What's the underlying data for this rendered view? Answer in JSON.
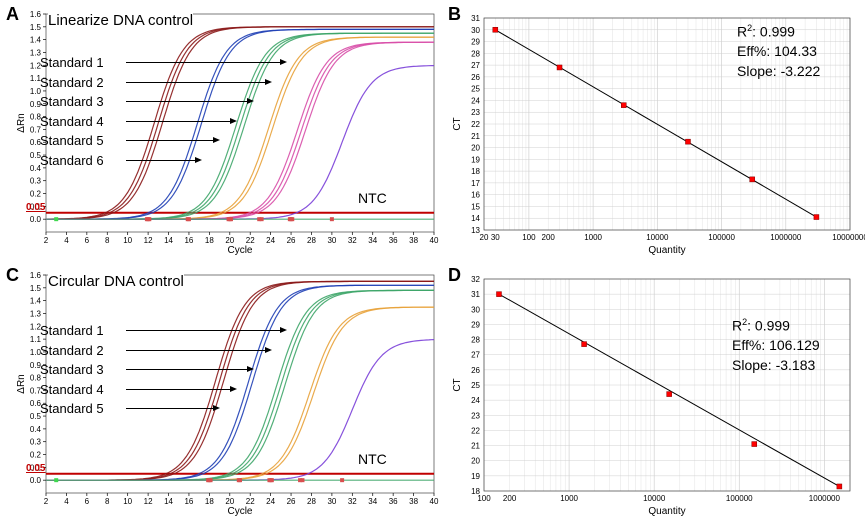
{
  "panels": {
    "A": {
      "letter": "A",
      "title": "Linearize DNA control",
      "type": "amplification",
      "legend": [
        "Standard 1",
        "Standard 2",
        "Standard 3",
        "Standard 4",
        "Standard 5",
        "Standard 6"
      ],
      "arrow_widths": [
        155,
        140,
        122,
        105,
        88,
        70
      ],
      "ntc": "NTC",
      "threshold_label": "0.05",
      "threshold": 0.05,
      "xlabel": "Cycle",
      "ylabel": "ΔRn",
      "xlim": [
        2,
        40
      ],
      "xtick_start": 2,
      "xtick_step": 2,
      "ylim": [
        -0.1,
        1.6
      ],
      "ytick_start": 0,
      "ytick_step": 0.1,
      "background_color": "#ffffff",
      "grid_color": "#d0d0d0",
      "line_width": 1.2,
      "curves": [
        {
          "name": "Standard 1",
          "color": "#8b1a1a",
          "reps": 3,
          "mid": 13,
          "plateau": 1.5
        },
        {
          "name": "Standard 2",
          "color": "#1f3fb5",
          "reps": 2,
          "mid": 17,
          "plateau": 1.48
        },
        {
          "name": "Standard 3",
          "color": "#3fa66a",
          "reps": 3,
          "mid": 21,
          "plateau": 1.45
        },
        {
          "name": "Standard 4",
          "color": "#e8a23a",
          "reps": 2,
          "mid": 24,
          "plateau": 1.42
        },
        {
          "name": "Standard 5",
          "color": "#d84fa8",
          "reps": 3,
          "mid": 27,
          "plateau": 1.38
        },
        {
          "name": "Standard 6",
          "color": "#7a3fd8",
          "reps": 1,
          "mid": 31,
          "plateau": 1.2
        },
        {
          "name": "NTC",
          "color": "#3fa66a",
          "reps": 1,
          "mid": 60,
          "plateau": 1.4
        }
      ],
      "baseline_markers": {
        "color_small": "#d84f4f",
        "color_ntc": "#3fd84f",
        "x_vals": [
          3,
          12,
          12,
          12,
          16,
          16,
          20,
          20,
          20,
          23,
          23,
          26,
          26,
          26,
          30
        ]
      }
    },
    "B": {
      "letter": "B",
      "type": "standard_curve",
      "xlabel": "Quantity",
      "ylabel": "CT",
      "xscale": "log",
      "xlim": [
        20,
        10000000
      ],
      "xticks": [
        20,
        30,
        100,
        200,
        1000,
        10000,
        100000,
        1000000,
        10000000
      ],
      "xtick_labels": [
        "20",
        "30",
        "100",
        "200",
        "1000",
        "10000",
        "100000",
        "1000000",
        "10000000"
      ],
      "ylim": [
        13,
        31
      ],
      "ytick_start": 13,
      "ytick_step": 1,
      "grid_color": "#d0d0d0",
      "line_color": "#000000",
      "marker_color": "#ff0000",
      "marker_size": 5,
      "points": [
        {
          "q": 30,
          "ct": 30.0
        },
        {
          "q": 300,
          "ct": 26.8
        },
        {
          "q": 3000,
          "ct": 23.6
        },
        {
          "q": 30000,
          "ct": 20.5
        },
        {
          "q": 300000,
          "ct": 17.3
        },
        {
          "q": 3000000,
          "ct": 14.1
        }
      ],
      "stats": {
        "r2_label": "R",
        "r2_sup": "2",
        "r2_val": ": 0.999",
        "eff": "Eff%: 104.33",
        "slope": "Slope: -3.222"
      }
    },
    "C": {
      "letter": "C",
      "title": "Circular DNA control",
      "type": "amplification",
      "legend": [
        "Standard 1",
        "Standard 2",
        "Standard 3",
        "Standard 4",
        "Standard 5"
      ],
      "arrow_widths": [
        155,
        140,
        122,
        105,
        88
      ],
      "ntc": "NTC",
      "threshold_label": "0.05",
      "threshold": 0.05,
      "xlabel": "Cycle",
      "ylabel": "ΔRn",
      "xlim": [
        2,
        40
      ],
      "xtick_start": 2,
      "xtick_step": 2,
      "ylim": [
        -0.1,
        1.6
      ],
      "ytick_start": 0,
      "ytick_step": 0.1,
      "background_color": "#ffffff",
      "grid_color": "#d0d0d0",
      "line_width": 1.2,
      "curves": [
        {
          "name": "Standard 1",
          "color": "#8b1a1a",
          "reps": 3,
          "mid": 19,
          "plateau": 1.55
        },
        {
          "name": "Standard 2",
          "color": "#1f3fb5",
          "reps": 2,
          "mid": 22,
          "plateau": 1.52
        },
        {
          "name": "Standard 3",
          "color": "#3fa66a",
          "reps": 3,
          "mid": 25,
          "plateau": 1.48
        },
        {
          "name": "Standard 4",
          "color": "#e8a23a",
          "reps": 2,
          "mid": 28,
          "plateau": 1.35
        },
        {
          "name": "Standard 5",
          "color": "#7a3fd8",
          "reps": 1,
          "mid": 32,
          "plateau": 1.1
        },
        {
          "name": "NTC",
          "color": "#3fa66a",
          "reps": 1,
          "mid": 60,
          "plateau": 1.4
        }
      ],
      "baseline_markers": {
        "color_small": "#d84f4f",
        "color_ntc": "#3fd84f",
        "x_vals": [
          3,
          18,
          18,
          18,
          21,
          21,
          24,
          24,
          24,
          27,
          27,
          31
        ]
      }
    },
    "D": {
      "letter": "D",
      "type": "standard_curve",
      "xlabel": "Quantity",
      "ylabel": "CT",
      "xscale": "log",
      "xlim": [
        100,
        2000000
      ],
      "xticks": [
        100,
        200,
        1000,
        10000,
        100000,
        1000000
      ],
      "xtick_labels": [
        "100",
        "200",
        "1000",
        "10000",
        "100000",
        "1000000"
      ],
      "ylim": [
        18,
        32
      ],
      "ytick_start": 18,
      "ytick_step": 1,
      "grid_color": "#d0d0d0",
      "line_color": "#000000",
      "marker_color": "#ff0000",
      "marker_size": 5,
      "points": [
        {
          "q": 150,
          "ct": 31.0
        },
        {
          "q": 1500,
          "ct": 27.7
        },
        {
          "q": 15000,
          "ct": 24.4
        },
        {
          "q": 150000,
          "ct": 21.1
        },
        {
          "q": 1500000,
          "ct": 18.3
        }
      ],
      "stats": {
        "r2_label": "R",
        "r2_sup": "2",
        "r2_val": ": 0.999",
        "eff": "Eff%: 106.129",
        "slope": "Slope: -3.183"
      }
    }
  }
}
